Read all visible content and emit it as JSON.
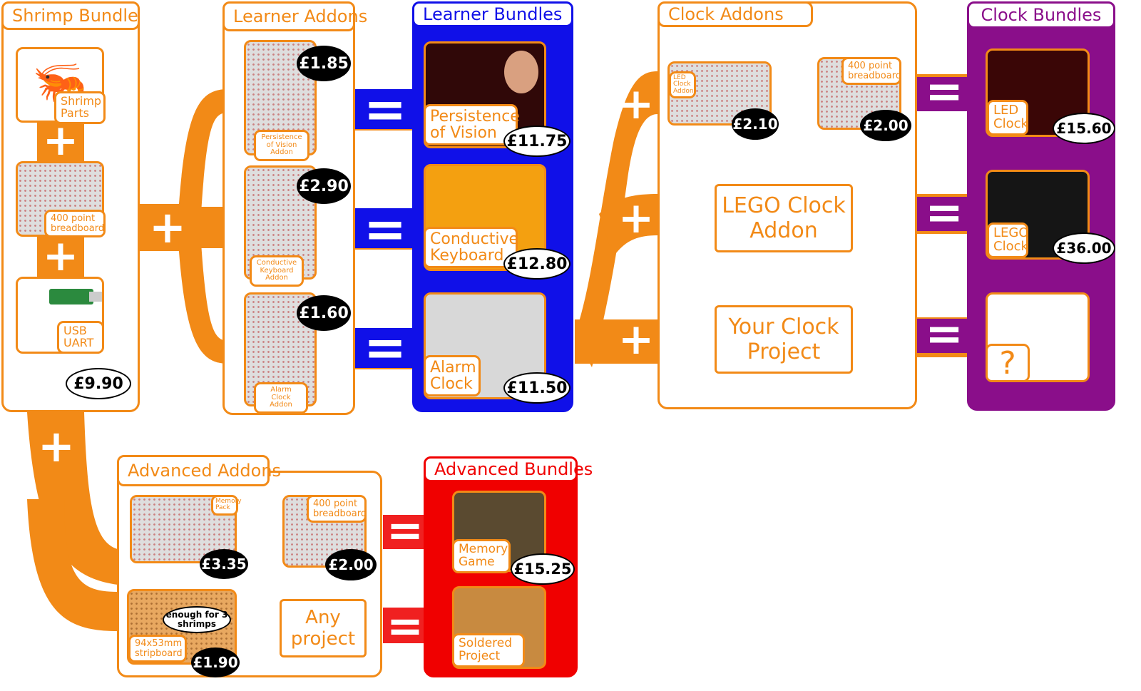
{
  "colors": {
    "orange": "#f28a17",
    "blue": "#1010e8",
    "purple": "#8a0e8a",
    "red": "#f00000"
  },
  "sections": {
    "shrimp_bundle": "Shrimp Bundle",
    "learner_addons": "Learner Addons",
    "learner_bundles": "Learner Bundles",
    "clock_addons": "Clock Addons",
    "clock_bundles": "Clock Bundles",
    "advanced_addons": "Advanced Addons",
    "advanced_bundles": "Advanced Bundles"
  },
  "shrimp": {
    "parts": "Shrimp Parts",
    "breadboard": "400 point breadboard",
    "uart": "USB UART",
    "price": "£9.90"
  },
  "learner_addons": [
    {
      "label": "Persistence of Vision Addon",
      "price": "£1.85"
    },
    {
      "label": "Conductive Keyboard Addon",
      "price": "£2.90"
    },
    {
      "label": "Alarm Clock Addon",
      "price": "£1.60"
    }
  ],
  "learner_bundles": [
    {
      "label": "Persistence of Vision",
      "price": "£11.75"
    },
    {
      "label": "Conductive Keyboard",
      "price": "£12.80"
    },
    {
      "label": "Alarm Clock",
      "price": "£11.50"
    }
  ],
  "clock_addons": {
    "led_label": "LED Clock Addon",
    "led_price": "£2.10",
    "breadboard": "400 point breadboard",
    "breadboard_price": "£2.00",
    "lego": "LEGO Clock Addon",
    "your": "Your Clock Project"
  },
  "clock_bundles": [
    {
      "label": "LED Clock",
      "price": "£15.60"
    },
    {
      "label": "LEGO Clock",
      "price": "£36.00"
    },
    {
      "label": "?"
    }
  ],
  "advanced_addons": {
    "memory_label": "Memory Pack",
    "memory_price": "£3.35",
    "breadboard": "400 point breadboard",
    "breadboard_price": "£2.00",
    "stripboard": "94x53mm stripboard",
    "stripboard_note": "enough for 3 shrimps",
    "stripboard_price": "£1.90",
    "any": "Any project"
  },
  "advanced_bundles": [
    {
      "label": "Memory Game",
      "price": "£15.25"
    },
    {
      "label": "Soldered Project"
    }
  ],
  "symbols": {
    "plus": "+",
    "equals": "="
  }
}
